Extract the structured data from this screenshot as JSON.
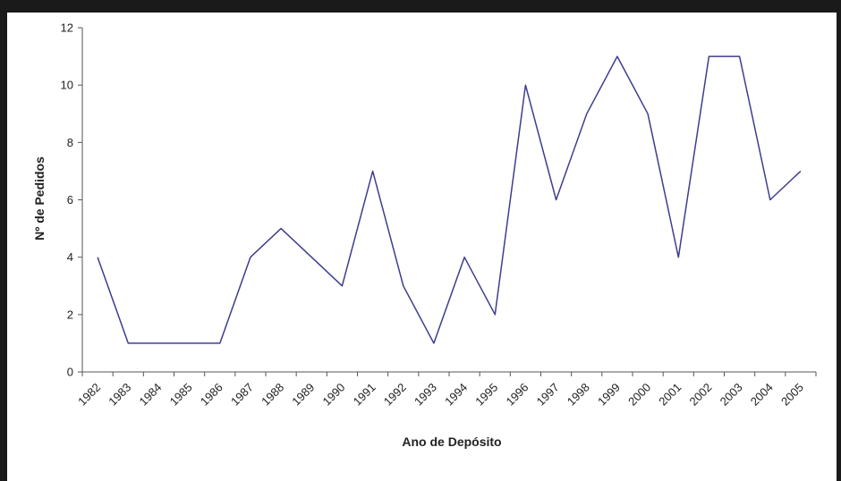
{
  "chart_data": {
    "type": "line",
    "title": "",
    "xlabel": "Ano de Depósito",
    "ylabel": "Nº de Pedidos",
    "categories": [
      "1982",
      "1983",
      "1984",
      "1985",
      "1986",
      "1987",
      "1988",
      "1989",
      "1990",
      "1991",
      "1992",
      "1993",
      "1994",
      "1995",
      "1996",
      "1997",
      "1998",
      "1999",
      "2000",
      "2001",
      "2002",
      "2003",
      "2004",
      "2005"
    ],
    "series": [
      {
        "values": [
          4,
          1,
          1,
          1,
          1,
          4,
          5,
          4,
          3,
          7,
          3,
          1,
          4,
          2,
          10,
          6,
          9,
          11,
          9,
          4,
          11,
          11,
          6,
          7
        ],
        "color": "#3d3d8f"
      }
    ],
    "ylim": [
      0,
      12
    ],
    "yticks": [
      0,
      2,
      4,
      6,
      8,
      10,
      12
    ],
    "grid": false,
    "legend": "none"
  }
}
